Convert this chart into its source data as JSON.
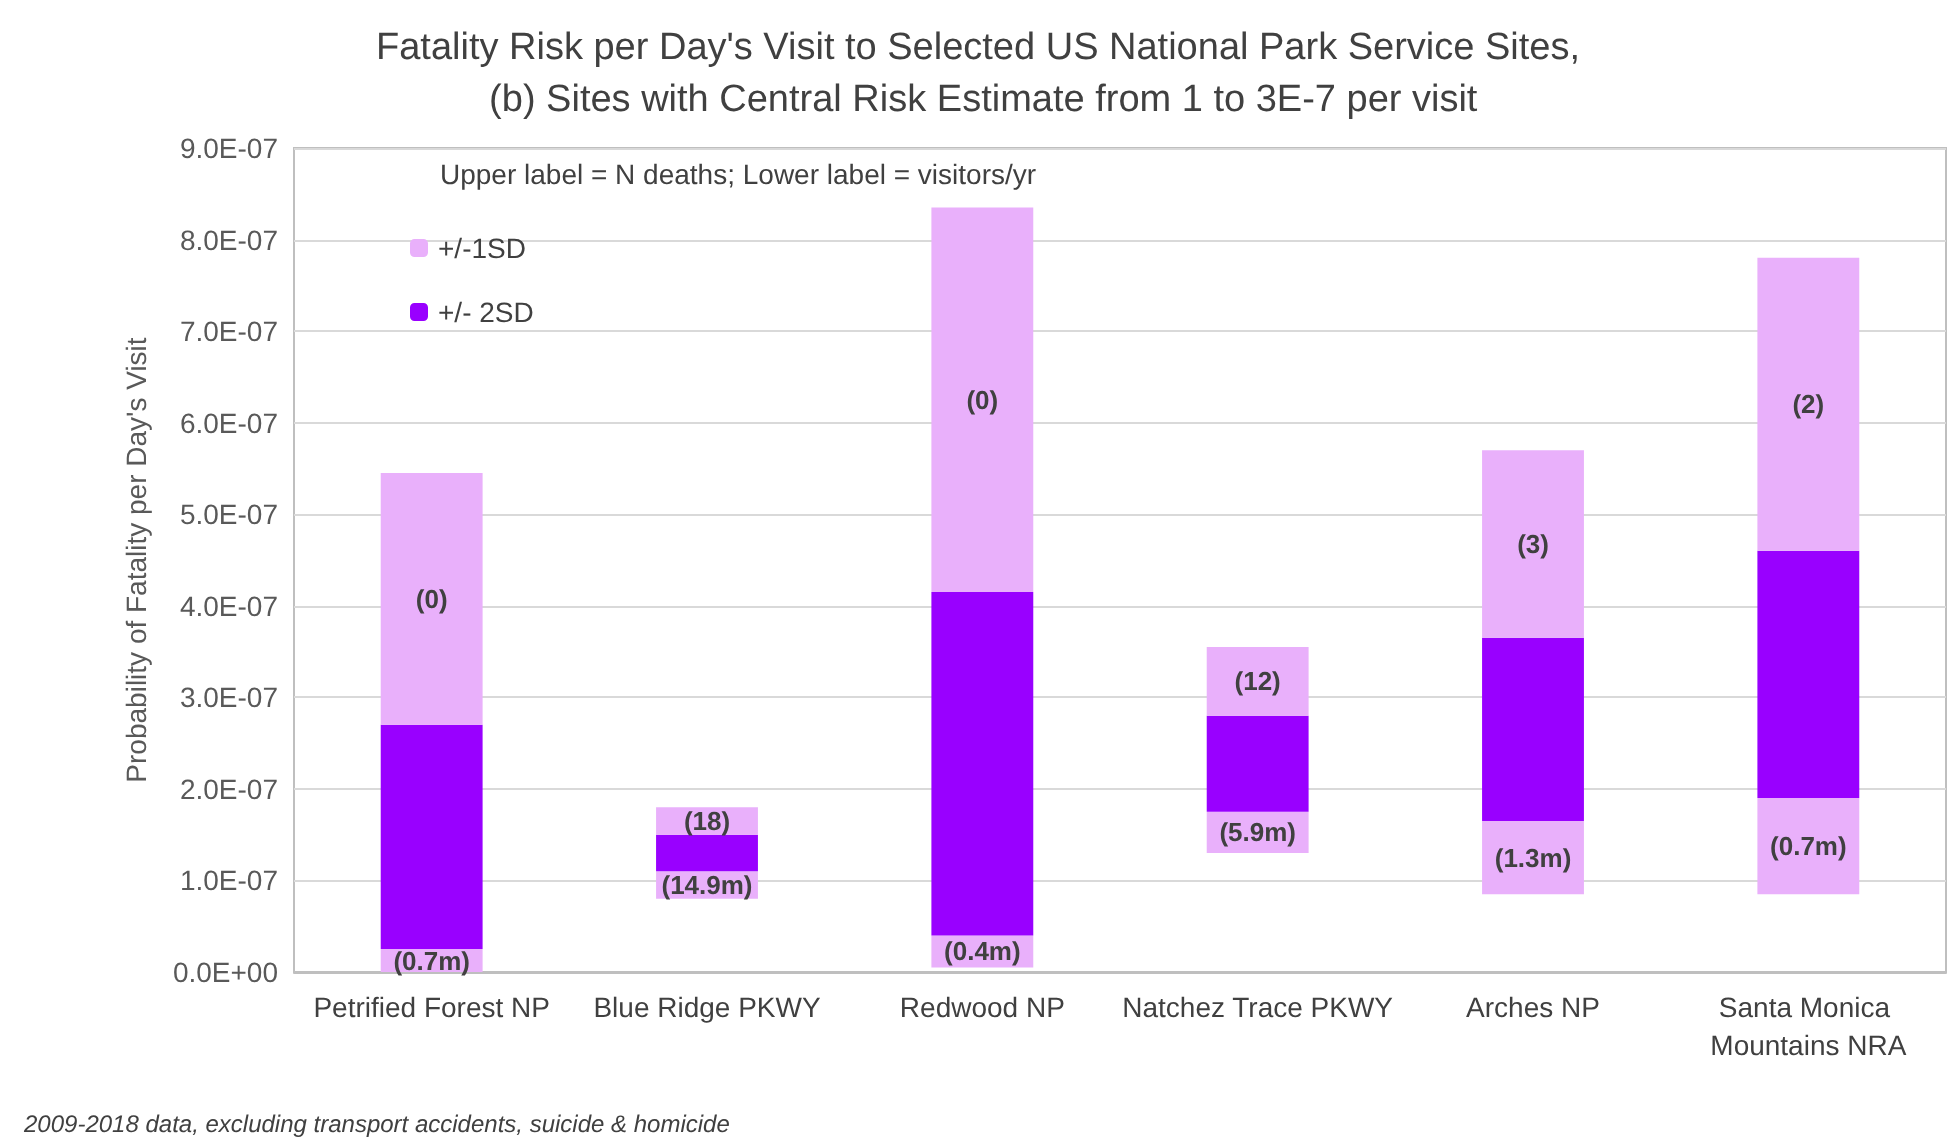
{
  "chart_data": {
    "type": "bar",
    "title": "Fatality Risk per Day's Visit to Selected US National Park Service Sites, (b) Sites with Central Risk Estimate from 1 to 3E-7 per visit",
    "ylabel": "Probability of Fatality per Day's Visit",
    "categories": [
      "Petrified Forest NP",
      "Blue Ridge PKWY",
      "Redwood NP",
      "Natchez Trace PKWY",
      "Arches NP",
      "Santa Monica Mountains NRA"
    ],
    "series": [
      {
        "color": "#e9b0fb",
        "base": [
          0,
          8e-08,
          5e-09,
          1.3e-07,
          8.5e-08,
          8.5e-08
        ],
        "values": [
          2.5e-08,
          3e-08,
          3.5e-08,
          4.5e-08,
          8e-08,
          1.05e-07
        ]
      },
      {
        "name": "+/- 2SD",
        "color": "#9900ff",
        "base": [
          2.5e-08,
          1.1e-07,
          4e-08,
          1.75e-07,
          1.65e-07,
          1.9e-07
        ],
        "values": [
          2.45e-07,
          4e-08,
          3.75e-07,
          1.05e-07,
          2e-07,
          2.7e-07
        ]
      },
      {
        "name": "+/-1SD",
        "color": "#e9b0fb",
        "base": [
          2.7e-07,
          1.5e-07,
          4.15e-07,
          2.8e-07,
          3.65e-07,
          4.6e-07
        ],
        "values": [
          2.75e-07,
          3e-08,
          4.2e-07,
          7.5e-08,
          2.05e-07,
          3.2e-07
        ]
      }
    ],
    "ylim": [
      0,
      9e-07
    ],
    "yticks": [
      {
        "value": 0,
        "label": "0.0E+00"
      },
      {
        "value": 1e-07,
        "label": "1.0E-07"
      },
      {
        "value": 2e-07,
        "label": "2.0E-07"
      },
      {
        "value": 3e-07,
        "label": "3.0E-07"
      },
      {
        "value": 4e-07,
        "label": "4.0E-07"
      },
      {
        "value": 5e-07,
        "label": "5.0E-07"
      },
      {
        "value": 6e-07,
        "label": "6.0E-07"
      },
      {
        "value": 7e-07,
        "label": "7.0E-07"
      },
      {
        "value": 8e-07,
        "label": "8.0E-07"
      },
      {
        "value": 9e-07,
        "label": "9.0E-07"
      }
    ],
    "grid": "y",
    "legend": "top left",
    "annotations": [
      "Upper label = N deaths; Lower label = visitors/yr",
      "2009-2018 data, excluding transport accidents, suicide & homicide",
      "(0.7m)",
      "(14.9m)",
      "(0.4m)",
      "(5.9m)",
      "(1.3m)",
      "(0.7m)",
      "(0)",
      "(18)",
      "(0)",
      "(12)",
      "(3)",
      "(2)"
    ]
  }
}
